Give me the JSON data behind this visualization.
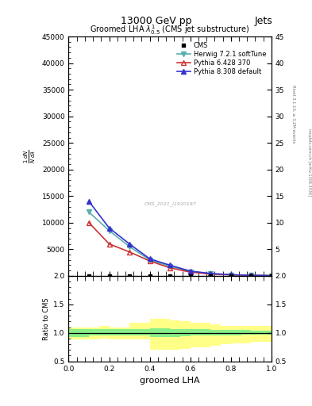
{
  "title": "13000 GeV pp",
  "title_right": "Jets",
  "plot_title": "Groomed LHA $\\lambda^{1}_{0.5}$ (CMS jet substructure)",
  "xlabel": "groomed LHA",
  "ylabel": "$\\frac{1}{\\sigma}\\frac{d\\sigma}{d\\lambda}$",
  "ylabel_ratio": "Ratio to CMS",
  "right_label_top": "Rivet 3.1.10, ≥ 3.2M events",
  "right_label_bot": "mcplots.cern.ch [arXiv:1306.3436]",
  "watermark": "CMS_2021_I1920187",
  "x_data": [
    0.1,
    0.2,
    0.3,
    0.4,
    0.5,
    0.6,
    0.7,
    0.8,
    0.9,
    1.0
  ],
  "y_herwig": [
    12000,
    8500,
    5500,
    3000,
    1800,
    800,
    400,
    200,
    100,
    50
  ],
  "y_pythia6": [
    10000,
    6000,
    4500,
    2800,
    1500,
    700,
    350,
    180,
    80,
    40
  ],
  "y_pythia8": [
    14000,
    9000,
    6000,
    3200,
    2000,
    900,
    450,
    220,
    110,
    55
  ],
  "x_ratio_bins": [
    0.0,
    0.05,
    0.1,
    0.15,
    0.2,
    0.25,
    0.3,
    0.35,
    0.4,
    0.45,
    0.5,
    0.55,
    0.6,
    0.65,
    0.7,
    0.75,
    0.8,
    0.85,
    0.9,
    0.95,
    1.0
  ],
  "yellow_lo": [
    0.88,
    0.88,
    0.88,
    0.9,
    0.88,
    0.88,
    0.88,
    0.88,
    0.7,
    0.7,
    0.7,
    0.72,
    0.75,
    0.75,
    0.78,
    0.8,
    0.82,
    0.82,
    0.85,
    0.85
  ],
  "yellow_hi": [
    1.1,
    1.1,
    1.1,
    1.12,
    1.1,
    1.1,
    1.18,
    1.18,
    1.25,
    1.25,
    1.22,
    1.2,
    1.18,
    1.18,
    1.15,
    1.12,
    1.12,
    1.12,
    1.12,
    1.12
  ],
  "green_lo": [
    0.93,
    0.93,
    0.95,
    0.96,
    0.95,
    0.95,
    0.96,
    0.96,
    0.92,
    0.92,
    0.93,
    0.94,
    0.95,
    0.95,
    0.96,
    0.96,
    0.96,
    0.97,
    0.97,
    0.97
  ],
  "green_hi": [
    1.06,
    1.06,
    1.06,
    1.06,
    1.06,
    1.06,
    1.07,
    1.07,
    1.08,
    1.08,
    1.07,
    1.07,
    1.06,
    1.06,
    1.05,
    1.05,
    1.05,
    1.05,
    1.04,
    1.04
  ],
  "color_herwig": "#5AAFAF",
  "color_pythia6": "#CC3333",
  "color_pythia8": "#3333CC",
  "color_cms": "#000000",
  "ylim_main": [
    0,
    45000
  ],
  "yticks_main": [
    5000,
    10000,
    15000,
    20000,
    25000,
    30000,
    35000,
    40000,
    45000
  ],
  "ylim_ratio": [
    0.5,
    2.0
  ],
  "yticks_ratio": [
    0.5,
    1.0,
    1.5,
    2.0
  ],
  "xlim": [
    0.0,
    1.0
  ]
}
